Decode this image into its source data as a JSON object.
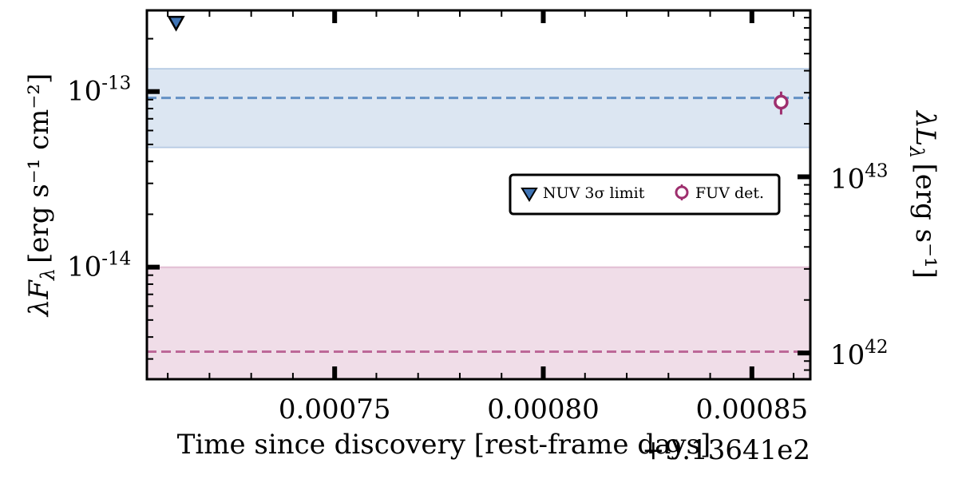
{
  "chart_data": {
    "type": "scatter",
    "xlabel": "Time since discovery [rest-frame days]",
    "x_offset_text": "+9.13641e2",
    "ylabel_left": "λF",
    "ylabel_left_sub": "λ",
    "ylabel_left_units": "[erg s⁻¹ cm⁻²]",
    "ylabel_right": "λL",
    "ylabel_right_sub": "λ",
    "ylabel_right_units": "[erg s⁻¹]",
    "xlim": [
      0.000705,
      0.000864
    ],
    "ylim_left": [
      2.3e-15,
      2.9e-13
    ],
    "ylim_right": [
      7.1e+41,
      8.8e+43
    ],
    "yscale": "log",
    "x_ticks": [
      {
        "value": 0.00075,
        "label": "0.00075"
      },
      {
        "value": 0.0008,
        "label": "0.00080"
      },
      {
        "value": 0.00085,
        "label": "0.00085"
      }
    ],
    "y_left_ticks": [
      {
        "value": 1e-13,
        "base": "10",
        "exp": "-13"
      },
      {
        "value": 1e-14,
        "base": "10",
        "exp": "-14"
      }
    ],
    "y_right_ticks": [
      {
        "value": 1e+43,
        "base": "10",
        "exp": "43"
      },
      {
        "value": 1e+42,
        "base": "10",
        "exp": "42"
      }
    ],
    "bands": [
      {
        "name": "NUV",
        "center": 9.2e-14,
        "low": 4.8e-14,
        "high": 1.35e-13,
        "color": "#4f81bd"
      },
      {
        "name": "FUV",
        "center": 3.3e-15,
        "low": 2.3e-15,
        "high": 1e-14,
        "color": "#b4538a"
      }
    ],
    "series": [
      {
        "name": "NUV 3σ limit",
        "marker": "triangle-down",
        "color": "#3f74b5",
        "points": [
          {
            "x": 0.000712,
            "y": 2.45e-13
          }
        ]
      },
      {
        "name": "FUV det.",
        "marker": "circle-open",
        "color": "#9e2f6e",
        "points": [
          {
            "x": 0.000857,
            "y": 8.7e-14,
            "yerr_low": 1.3e-14,
            "yerr_high": 1.3e-14
          }
        ]
      }
    ],
    "legend": {
      "placement": "center-right",
      "entries": [
        "NUV 3σ limit",
        "FUV det."
      ]
    },
    "grid": false
  }
}
